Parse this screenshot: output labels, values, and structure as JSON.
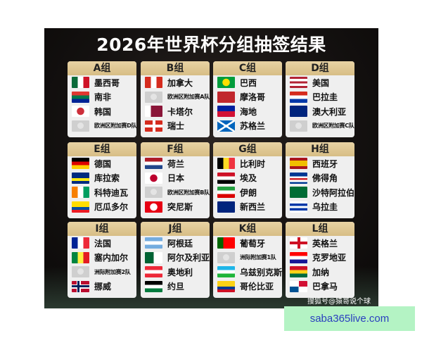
{
  "title": "2026年世界杯分组抽签结果",
  "watermark": "搜狐号@猿哥说个球",
  "site": "saba365live.com",
  "groups": [
    {
      "name": "A组",
      "teams": [
        {
          "name": "墨西哥",
          "flag": {
            "dir": "90deg",
            "colors": [
              "#0b6b3a",
              "#ffffff",
              "#ce1126"
            ]
          }
        },
        {
          "name": "南非",
          "flag": {
            "dir": "180deg",
            "colors": [
              "#de3831",
              "#007a4d",
              "#002395"
            ]
          }
        },
        {
          "name": "韩国",
          "flag": {
            "dir": "circle",
            "colors": [
              "#ffffff",
              "#cd2e3a"
            ]
          }
        },
        {
          "name": "欧洲区附加赛D队",
          "placeholder": true
        }
      ]
    },
    {
      "name": "B组",
      "teams": [
        {
          "name": "加拿大",
          "flag": {
            "dir": "90deg",
            "colors": [
              "#d52b1e",
              "#ffffff",
              "#d52b1e"
            ]
          }
        },
        {
          "name": "欧洲区附加赛A队",
          "placeholder": true
        },
        {
          "name": "卡塔尔",
          "flag": {
            "dir": "90deg",
            "colors": [
              "#ffffff",
              "#8a1538",
              "#8a1538"
            ]
          }
        },
        {
          "name": "瑞士",
          "flag": {
            "dir": "cross",
            "colors": [
              "#d52b1e",
              "#ffffff"
            ]
          }
        }
      ]
    },
    {
      "name": "C组",
      "teams": [
        {
          "name": "巴西",
          "flag": {
            "dir": "circle",
            "colors": [
              "#009c3b",
              "#ffdf00"
            ]
          }
        },
        {
          "name": "摩洛哥",
          "flag": {
            "dir": "180deg",
            "colors": [
              "#c1272d",
              "#c1272d"
            ]
          }
        },
        {
          "name": "海地",
          "flag": {
            "dir": "180deg",
            "colors": [
              "#00209f",
              "#d21034"
            ]
          }
        },
        {
          "name": "苏格兰",
          "flag": {
            "dir": "saltire",
            "colors": [
              "#0065bd",
              "#ffffff"
            ]
          }
        }
      ]
    },
    {
      "name": "D组",
      "teams": [
        {
          "name": "美国",
          "flag": {
            "dir": "180deg",
            "colors": [
              "#b22234",
              "#ffffff",
              "#b22234",
              "#ffffff",
              "#b22234"
            ]
          }
        },
        {
          "name": "巴拉圭",
          "flag": {
            "dir": "180deg",
            "colors": [
              "#d52b1e",
              "#ffffff",
              "#0038a8"
            ]
          }
        },
        {
          "name": "澳大利亚",
          "flag": {
            "dir": "180deg",
            "colors": [
              "#00247d",
              "#00247d"
            ]
          }
        },
        {
          "name": "欧洲区附加赛C队",
          "placeholder": true
        }
      ]
    },
    {
      "name": "E组",
      "teams": [
        {
          "name": "德国",
          "flag": {
            "dir": "180deg",
            "colors": [
              "#000000",
              "#dd0000",
              "#ffce00"
            ]
          }
        },
        {
          "name": "库拉索",
          "flag": {
            "dir": "180deg",
            "colors": [
              "#002b7f",
              "#002b7f",
              "#f9e814",
              "#002b7f"
            ]
          }
        },
        {
          "name": "科特迪瓦",
          "flag": {
            "dir": "90deg",
            "colors": [
              "#f77f00",
              "#ffffff",
              "#009e60"
            ]
          }
        },
        {
          "name": "厄瓜多尔",
          "flag": {
            "dir": "180deg",
            "colors": [
              "#ffdd00",
              "#ffdd00",
              "#034ea2",
              "#ed1c24"
            ]
          }
        }
      ]
    },
    {
      "name": "F组",
      "teams": [
        {
          "name": "荷兰",
          "flag": {
            "dir": "180deg",
            "colors": [
              "#ae1c28",
              "#ffffff",
              "#21468b"
            ]
          }
        },
        {
          "name": "日本",
          "flag": {
            "dir": "circle",
            "colors": [
              "#ffffff",
              "#bc002d"
            ]
          }
        },
        {
          "name": "欧洲区附加赛B队",
          "placeholder": true
        },
        {
          "name": "突尼斯",
          "flag": {
            "dir": "circle",
            "colors": [
              "#e70013",
              "#ffffff"
            ]
          }
        }
      ]
    },
    {
      "name": "G组",
      "teams": [
        {
          "name": "比利时",
          "flag": {
            "dir": "90deg",
            "colors": [
              "#000000",
              "#fdda24",
              "#ef3340"
            ]
          }
        },
        {
          "name": "埃及",
          "flag": {
            "dir": "180deg",
            "colors": [
              "#ce1126",
              "#ffffff",
              "#000000"
            ]
          }
        },
        {
          "name": "伊朗",
          "flag": {
            "dir": "180deg",
            "colors": [
              "#239f40",
              "#ffffff",
              "#da0000"
            ]
          }
        },
        {
          "name": "新西兰",
          "flag": {
            "dir": "180deg",
            "colors": [
              "#00247d",
              "#00247d"
            ]
          }
        }
      ]
    },
    {
      "name": "H组",
      "teams": [
        {
          "name": "西班牙",
          "flag": {
            "dir": "180deg",
            "colors": [
              "#aa151b",
              "#f1bf00",
              "#f1bf00",
              "#aa151b"
            ]
          }
        },
        {
          "name": "佛得角",
          "flag": {
            "dir": "180deg",
            "colors": [
              "#003893",
              "#003893",
              "#ffffff",
              "#cf2027",
              "#ffffff",
              "#003893"
            ]
          }
        },
        {
          "name": "沙特阿拉伯",
          "flag": {
            "dir": "180deg",
            "colors": [
              "#006c35",
              "#006c35"
            ]
          }
        },
        {
          "name": "乌拉圭",
          "flag": {
            "dir": "180deg",
            "colors": [
              "#ffffff",
              "#0038a8",
              "#ffffff",
              "#0038a8",
              "#ffffff"
            ]
          }
        }
      ]
    },
    {
      "name": "I组",
      "teams": [
        {
          "name": "法国",
          "flag": {
            "dir": "90deg",
            "colors": [
              "#002395",
              "#ffffff",
              "#ed2939"
            ]
          }
        },
        {
          "name": "塞内加尔",
          "flag": {
            "dir": "90deg",
            "colors": [
              "#00853f",
              "#fdef42",
              "#e31b23"
            ]
          }
        },
        {
          "name": "洲际附加赛2队",
          "placeholder": true
        },
        {
          "name": "挪威",
          "flag": {
            "dir": "nordic",
            "colors": [
              "#ba0c2f",
              "#00205b"
            ]
          }
        }
      ]
    },
    {
      "name": "J组",
      "teams": [
        {
          "name": "阿根廷",
          "flag": {
            "dir": "180deg",
            "colors": [
              "#74acdf",
              "#ffffff",
              "#74acdf"
            ]
          }
        },
        {
          "name": "阿尔及利亚",
          "flag": {
            "dir": "90deg",
            "colors": [
              "#006233",
              "#ffffff"
            ]
          }
        },
        {
          "name": "奥地利",
          "flag": {
            "dir": "180deg",
            "colors": [
              "#ed2939",
              "#ffffff",
              "#ed2939"
            ]
          }
        },
        {
          "name": "约旦",
          "flag": {
            "dir": "180deg",
            "colors": [
              "#000000",
              "#ffffff",
              "#007a3d"
            ]
          }
        }
      ]
    },
    {
      "name": "K组",
      "teams": [
        {
          "name": "葡萄牙",
          "flag": {
            "dir": "90deg",
            "colors": [
              "#006600",
              "#ff0000",
              "#ff0000"
            ]
          }
        },
        {
          "name": "洲际附加赛1队",
          "placeholder": true
        },
        {
          "name": "乌兹别克斯坦",
          "flag": {
            "dir": "180deg",
            "colors": [
              "#1eb5e8",
              "#ffffff",
              "#1eb53a"
            ]
          }
        },
        {
          "name": "哥伦比亚",
          "flag": {
            "dir": "180deg",
            "colors": [
              "#fcd116",
              "#fcd116",
              "#003893",
              "#ce1126"
            ]
          }
        }
      ]
    },
    {
      "name": "L组",
      "teams": [
        {
          "name": "英格兰",
          "flag": {
            "dir": "cross",
            "colors": [
              "#ffffff",
              "#ce1124"
            ]
          }
        },
        {
          "name": "克罗地亚",
          "flag": {
            "dir": "180deg",
            "colors": [
              "#ff0000",
              "#ffffff",
              "#171796"
            ]
          }
        },
        {
          "name": "加纳",
          "flag": {
            "dir": "180deg",
            "colors": [
              "#ce1126",
              "#fcd116",
              "#006b3f"
            ]
          }
        },
        {
          "name": "巴拿马",
          "flag": {
            "dir": "quarters",
            "colors": [
              "#ffffff",
              "#d21034",
              "#005293",
              "#ffffff"
            ]
          }
        }
      ]
    }
  ]
}
